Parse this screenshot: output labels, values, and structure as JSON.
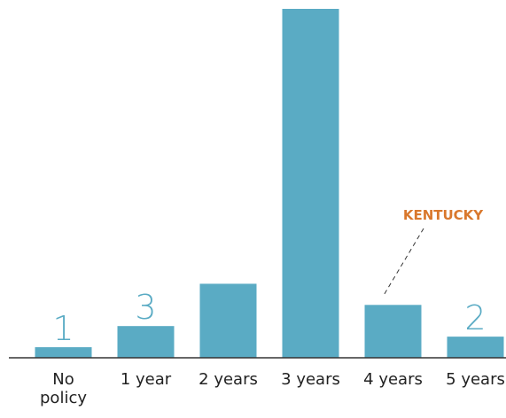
{
  "chart_data": {
    "type": "bar",
    "categories": [
      "No policy",
      "1 year",
      "2 years",
      "3 years",
      "4 years",
      "5 years"
    ],
    "values": [
      1,
      3,
      7,
      33,
      5,
      2
    ],
    "color": "#5aabc4",
    "annotation": "KENTUCKY",
    "annotation_color": "#d9782d"
  }
}
